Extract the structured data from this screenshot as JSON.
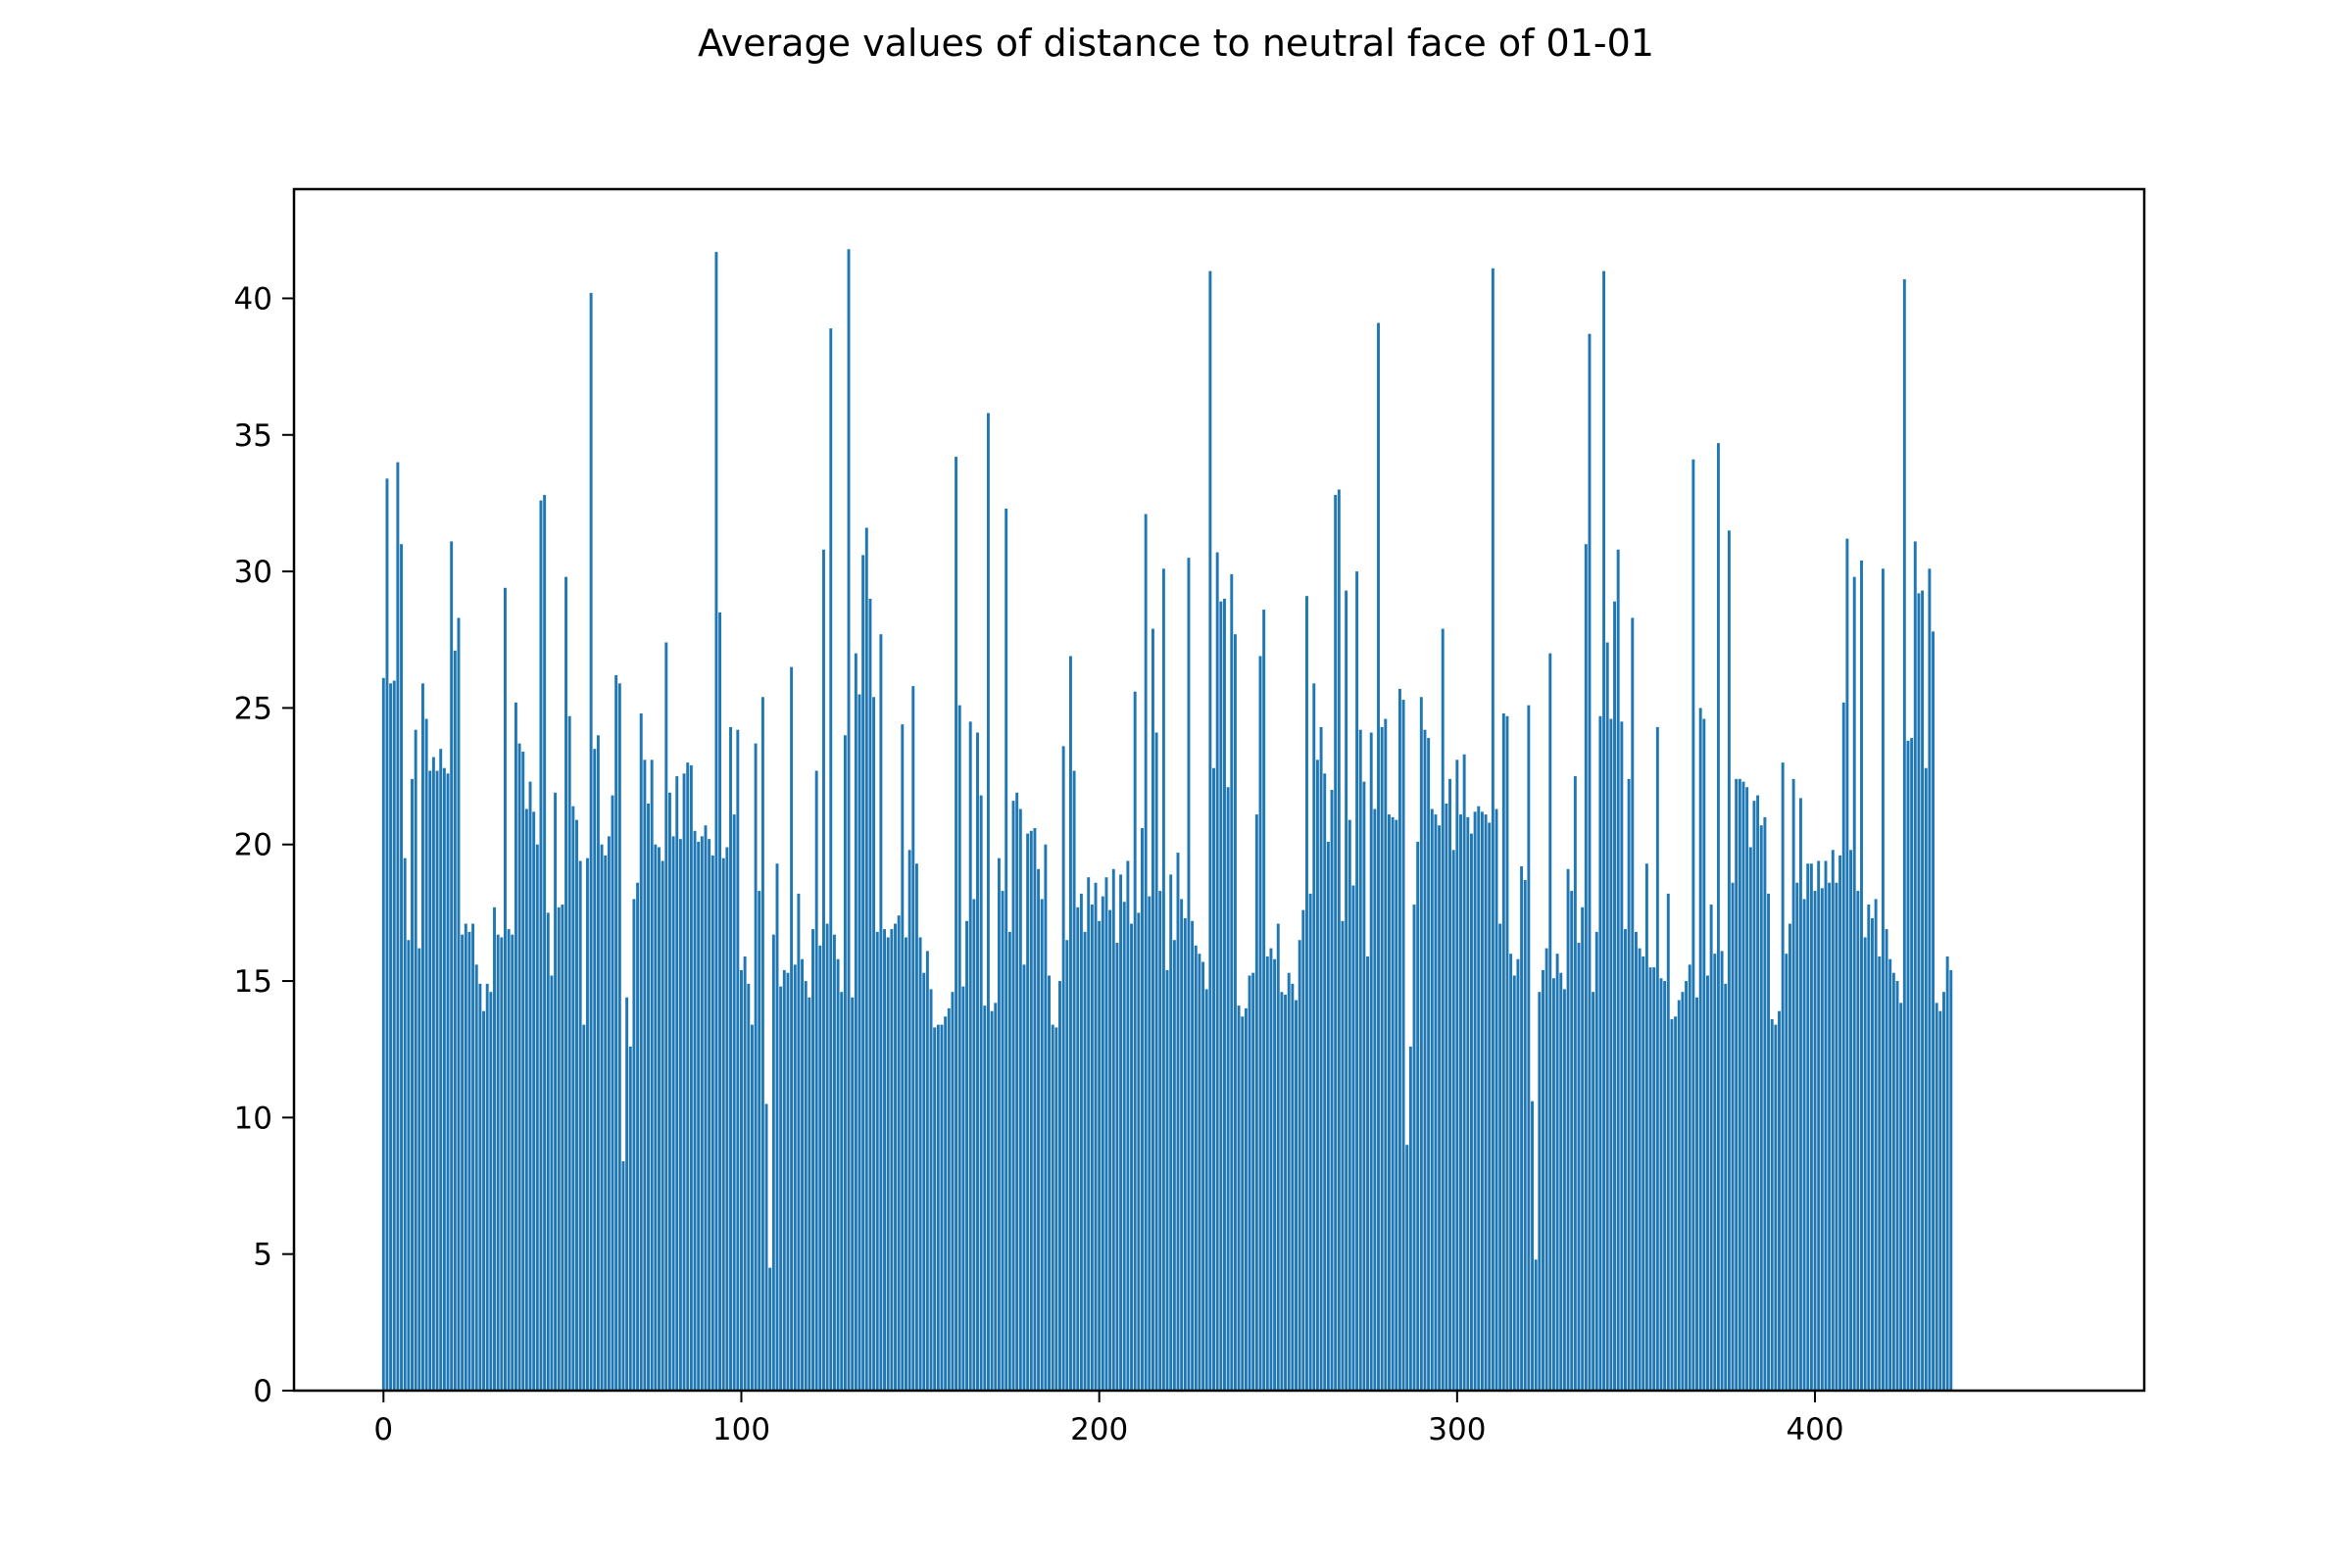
{
  "chart_data": {
    "type": "bar",
    "title": "Average values of distance to neutral face of 01-01",
    "xlabel": "",
    "ylabel": "",
    "xlim": [
      -25,
      492
    ],
    "ylim": [
      0,
      44
    ],
    "xticks": [
      0,
      100,
      200,
      300,
      400
    ],
    "yticks": [
      0,
      5,
      10,
      15,
      20,
      25,
      30,
      35,
      40
    ],
    "grid": false,
    "legend": "none",
    "bar_color": "#1f77b4",
    "bar_width": 0.8,
    "x_start": 0,
    "values": [
      26.1,
      33.4,
      25.9,
      26.0,
      34.0,
      31.0,
      19.5,
      16.5,
      22.4,
      24.2,
      16.2,
      25.9,
      24.6,
      22.7,
      23.2,
      22.7,
      23.5,
      22.8,
      22.6,
      31.1,
      27.1,
      28.3,
      16.7,
      17.1,
      16.8,
      17.1,
      15.6,
      14.9,
      13.9,
      14.9,
      14.6,
      17.7,
      16.7,
      16.6,
      29.4,
      16.9,
      16.7,
      25.2,
      23.7,
      23.4,
      21.3,
      22.3,
      21.2,
      20.0,
      32.6,
      32.8,
      17.5,
      15.2,
      21.9,
      17.7,
      17.8,
      29.8,
      24.7,
      21.4,
      20.9,
      19.4,
      13.4,
      19.5,
      40.2,
      23.5,
      24.0,
      20.0,
      19.6,
      20.3,
      21.8,
      26.2,
      25.9,
      8.4,
      14.4,
      12.6,
      18.0,
      18.6,
      24.8,
      23.1,
      21.5,
      23.1,
      20.0,
      19.9,
      19.4,
      27.4,
      21.9,
      20.3,
      22.5,
      20.2,
      22.6,
      23.0,
      22.9,
      20.5,
      20.1,
      20.3,
      20.7,
      20.2,
      19.6,
      41.7,
      28.5,
      19.5,
      19.9,
      24.3,
      21.1,
      24.2,
      15.4,
      15.9,
      14.9,
      13.4,
      23.7,
      18.3,
      25.4,
      10.5,
      4.5,
      16.7,
      19.3,
      14.8,
      15.4,
      15.3,
      26.5,
      15.6,
      18.2,
      15.8,
      15.0,
      14.4,
      16.9,
      22.7,
      16.3,
      30.8,
      17.1,
      38.9,
      16.7,
      15.8,
      14.6,
      24.0,
      41.8,
      14.4,
      27.0,
      25.5,
      30.6,
      31.6,
      29.0,
      25.4,
      16.8,
      27.7,
      16.9,
      16.6,
      16.9,
      17.1,
      17.4,
      24.4,
      16.6,
      19.8,
      25.8,
      19.3,
      16.6,
      15.3,
      16.1,
      14.7,
      13.3,
      13.4,
      13.4,
      13.7,
      14.0,
      14.6,
      34.2,
      25.1,
      14.8,
      17.2,
      24.5,
      18.0,
      24.1,
      21.8,
      14.1,
      35.8,
      13.9,
      14.2,
      19.5,
      18.3,
      32.3,
      16.8,
      21.6,
      21.9,
      21.3,
      15.6,
      20.4,
      20.5,
      20.6,
      19.1,
      18.0,
      20.0,
      15.2,
      13.4,
      13.3,
      15.0,
      23.6,
      16.5,
      26.9,
      22.7,
      17.7,
      18.2,
      16.8,
      18.8,
      17.8,
      18.6,
      17.2,
      18.1,
      18.8,
      17.6,
      19.1,
      16.4,
      18.9,
      17.9,
      19.4,
      17.1,
      25.6,
      17.5,
      20.6,
      32.1,
      18.1,
      27.9,
      24.1,
      18.3,
      30.1,
      15.4,
      18.9,
      16.5,
      19.7,
      18.0,
      17.3,
      30.5,
      17.2,
      16.3,
      16.0,
      15.7,
      14.7,
      41.0,
      22.8,
      30.7,
      28.9,
      29.0,
      22.1,
      29.9,
      27.7,
      14.1,
      13.7,
      14.0,
      15.2,
      15.3,
      21.1,
      26.9,
      28.6,
      15.9,
      16.2,
      15.8,
      17.1,
      14.6,
      14.5,
      15.3,
      14.9,
      14.3,
      16.5,
      17.6,
      29.1,
      18.2,
      25.9,
      23.1,
      24.3,
      22.6,
      20.1,
      22.0,
      32.8,
      33.0,
      17.2,
      29.3,
      20.9,
      18.5,
      30.0,
      24.2,
      22.3,
      15.9,
      24.1,
      21.3,
      39.1,
      24.3,
      24.6,
      21.1,
      21.0,
      20.9,
      25.7,
      25.3,
      9.0,
      12.6,
      17.8,
      20.1,
      25.4,
      24.2,
      23.9,
      21.3,
      21.1,
      20.7,
      27.9,
      21.5,
      22.4,
      19.8,
      23.1,
      21.1,
      23.3,
      21.0,
      20.4,
      21.2,
      21.4,
      21.2,
      21.1,
      20.8,
      41.1,
      21.3,
      17.1,
      24.8,
      24.7,
      16.0,
      15.2,
      15.8,
      19.2,
      18.7,
      25.1,
      10.6,
      4.8,
      14.6,
      15.4,
      16.2,
      27.0,
      15.1,
      16.0,
      15.3,
      14.7,
      19.1,
      18.3,
      22.5,
      16.4,
      17.7,
      31.0,
      38.7,
      14.6,
      16.8,
      24.7,
      41.0,
      27.4,
      24.6,
      28.9,
      30.8,
      24.5,
      16.9,
      22.4,
      28.3,
      16.8,
      16.2,
      15.9,
      19.3,
      15.5,
      15.5,
      24.3,
      15.1,
      15.0,
      18.2,
      13.6,
      13.7,
      14.3,
      14.6,
      15.0,
      15.6,
      34.1,
      14.4,
      25.0,
      24.6,
      15.2,
      17.8,
      16.0,
      34.7,
      16.1,
      14.9,
      31.5,
      18.6,
      22.4,
      22.4,
      22.3,
      22.1,
      19.9,
      21.6,
      21.8,
      20.7,
      21.0,
      18.2,
      13.6,
      13.4,
      13.9,
      23.0,
      16.0,
      17.1,
      22.4,
      18.6,
      21.7,
      18.0,
      19.3,
      19.3,
      18.3,
      19.4,
      18.4,
      19.4,
      18.6,
      19.8,
      18.6,
      19.6,
      25.2,
      31.2,
      19.8,
      29.8,
      18.3,
      30.4,
      16.6,
      17.8,
      17.3,
      18.0,
      15.9,
      30.1,
      16.9,
      15.8,
      15.3,
      15.0,
      14.2,
      40.7,
      23.8,
      23.9,
      31.1,
      29.2,
      29.3,
      22.8,
      30.1,
      27.8,
      14.2,
      13.9,
      14.6,
      15.9,
      15.4
    ]
  }
}
